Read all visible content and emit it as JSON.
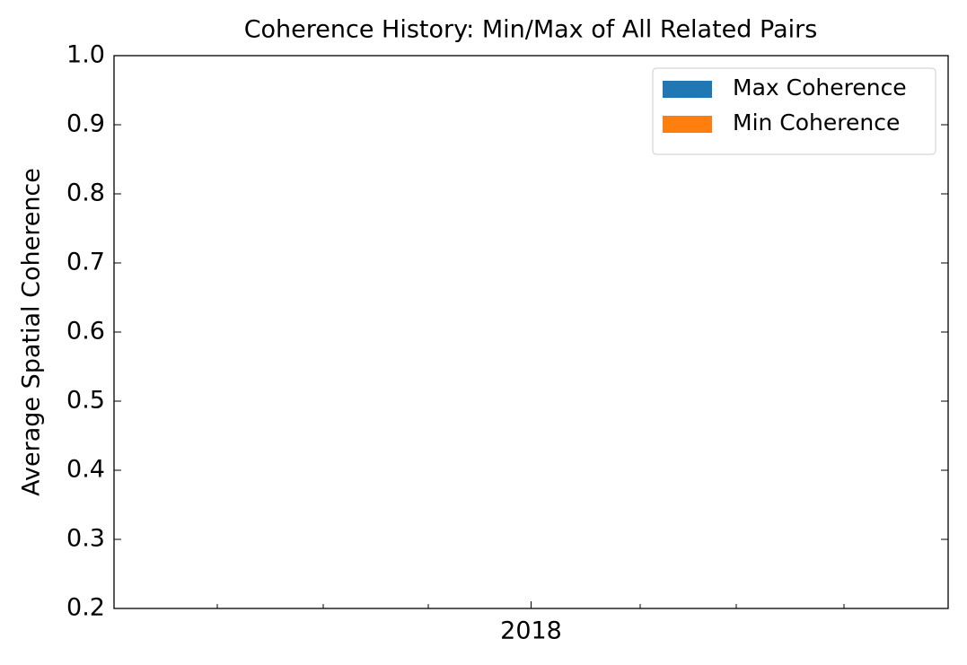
{
  "chart_data": {
    "type": "bar",
    "title": "Coherence History: Min/Max of All Related Pairs",
    "y_label": "Average Spatial Coherence",
    "categories": [
      "2018"
    ],
    "series": [
      {
        "name": "Max Coherence",
        "color": "#1f77b4",
        "values": [
          null
        ]
      },
      {
        "name": "Min Coherence",
        "color": "#ff7f0e",
        "values": [
          null
        ]
      }
    ],
    "ylim": [
      0.2,
      1.0
    ],
    "yticks": [
      0.2,
      0.3,
      0.4,
      0.5,
      0.6,
      0.7,
      0.8,
      0.9,
      {
        "value": 1,
        "label": "1.0"
      }
    ],
    "legend": "upper right"
  }
}
